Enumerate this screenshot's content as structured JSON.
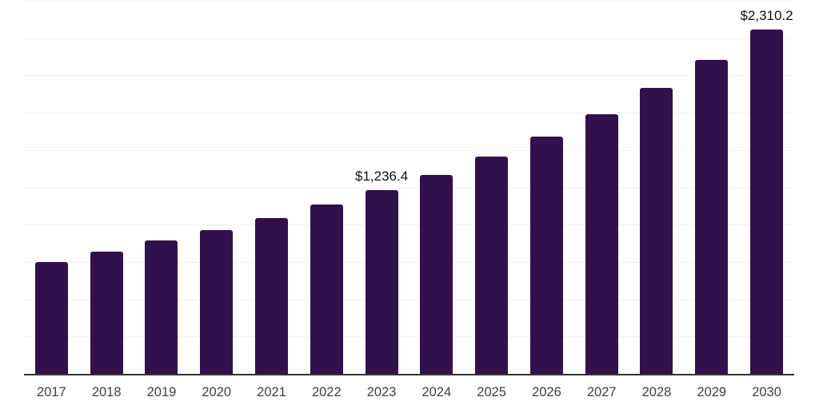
{
  "chart_data": {
    "type": "bar",
    "title": "",
    "xlabel": "",
    "ylabel": "",
    "categories": [
      "2017",
      "2018",
      "2019",
      "2020",
      "2021",
      "2022",
      "2023",
      "2024",
      "2025",
      "2026",
      "2027",
      "2028",
      "2029",
      "2030"
    ],
    "values": [
      753,
      824,
      899,
      967,
      1050,
      1140,
      1236.4,
      1341,
      1460,
      1596,
      1745,
      1920,
      2110,
      2310.2
    ],
    "data_labels": {
      "2023": "$1,236.4",
      "2030": "$2,310.2"
    },
    "ylim": [
      0,
      2500
    ],
    "grid_step": 250,
    "grid_on": true,
    "y_tick_labels_visible": false,
    "legend": "none",
    "colors": {
      "bar": "#31114B",
      "grid": "#F2F2F2",
      "axis": "#333333",
      "value_label": "#111111",
      "tick_label": "#404040"
    }
  }
}
